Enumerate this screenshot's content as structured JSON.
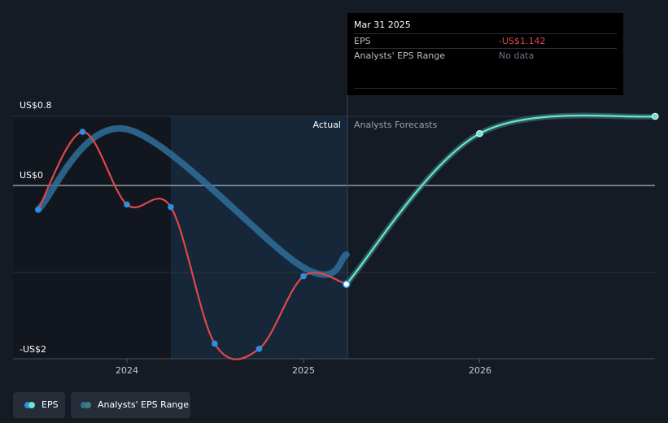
{
  "chart_data": {
    "type": "line",
    "y_axis": {
      "top_label": "US$0.8",
      "zero_label": "US$0",
      "bottom_label": "-US$2",
      "ylim": [
        -2.0,
        0.8
      ]
    },
    "x_axis": {
      "ticks": [
        "2024",
        "2025",
        "2026"
      ]
    },
    "regions": {
      "actual_label": "Actual",
      "forecast_label": "Analysts Forecasts"
    },
    "series": [
      {
        "name": "EPS",
        "kind": "actual",
        "color": "#e0474c",
        "points": [
          {
            "x": "2023-07-01",
            "y": -0.28
          },
          {
            "x": "2023-10-01",
            "y": 0.62
          },
          {
            "x": "2024-01-01",
            "y": -0.22
          },
          {
            "x": "2024-04-01",
            "y": -0.25
          },
          {
            "x": "2024-07-01",
            "y": -1.83
          },
          {
            "x": "2024-10-01",
            "y": -1.89
          },
          {
            "x": "2025-01-01",
            "y": -1.05
          },
          {
            "x": "2025-03-31",
            "y": -1.142
          }
        ]
      },
      {
        "name": "EPS",
        "kind": "forecast",
        "color": "#6be3d4",
        "points": [
          {
            "x": "2025-03-31",
            "y": -1.142
          },
          {
            "x": "2026-01-01",
            "y": 0.6
          },
          {
            "x": "2026-12-31",
            "y": 0.8
          }
        ]
      },
      {
        "name": "Analysts' EPS Range",
        "kind": "range",
        "color": "#2f6f9a",
        "points": [
          {
            "x": "2023-07-01",
            "y": -0.28
          },
          {
            "x": "2024-01-01",
            "y": 0.65
          },
          {
            "x": "2025-01-01",
            "y": -0.95
          },
          {
            "x": "2025-03-31",
            "y": -0.8
          }
        ]
      }
    ],
    "tooltip": {
      "date": "Mar 31 2025",
      "rows": [
        {
          "label": "EPS",
          "value": "-US$1.142",
          "color": "#e0474c"
        },
        {
          "label": "Analysts' EPS Range",
          "value": "No data",
          "color": "#6b7280"
        }
      ]
    },
    "legend": [
      {
        "label": "EPS",
        "color": "#2e8ee0",
        "color2": "#6be3d4"
      },
      {
        "label": "Analysts' EPS Range",
        "color": "#2f6f9a",
        "color2": "#3f7f7a"
      }
    ]
  }
}
